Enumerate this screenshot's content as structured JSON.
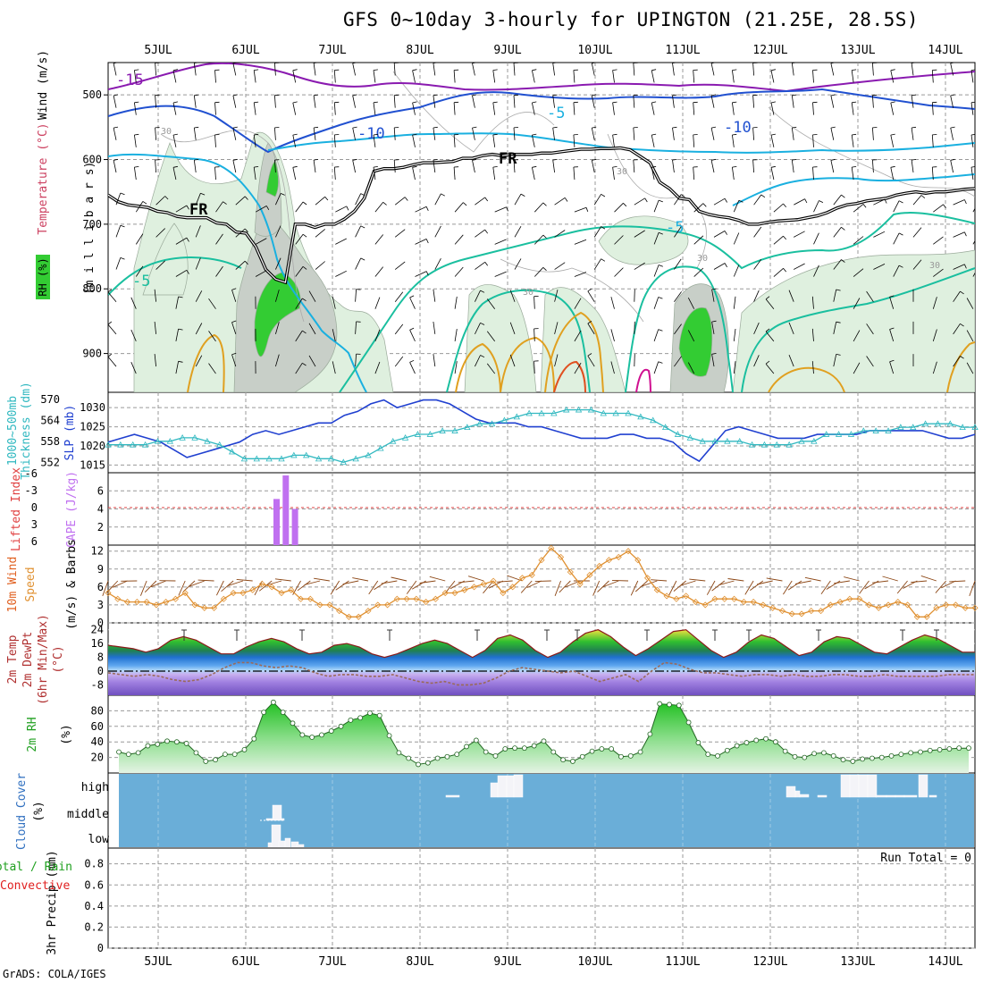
{
  "title": "GFS 0~10day 3-hourly for UPINGTON (21.25E, 28.5S)",
  "footer": "GrADS: COLA/IGES",
  "colors": {
    "rh_green": "#33cc33",
    "rh_light": "#dff0df",
    "rh_grey": "#c8cfc8",
    "temp_purple": "#8a1ab0",
    "temp_blue": "#2050d0",
    "temp_cyan": "#1ab0e0",
    "temp_teal": "#1abf9f",
    "temp_orange": "#e0a020",
    "freezing": "#000000",
    "slp": "#2040d0",
    "thickness": "#30b8c0",
    "cape": "#c070f0",
    "li_line": "#e04040",
    "wind10m": "#e09030",
    "barbs": "#8b4513",
    "dewpt": "#9a6a5a",
    "cloud_bg": "#6aaed8"
  },
  "chart_data": [
    {
      "type": "heatmap",
      "name": "vertical-cross-section",
      "ylabel": "(m i l l i b a r s)",
      "left_labels": [
        "RH (%)",
        "Temperature (°C)",
        "Wind (m/s)"
      ],
      "x_dates": [
        "5JUL",
        "6JUL",
        "7JUL",
        "8JUL",
        "9JUL",
        "10JUL",
        "11JUL",
        "12JUL",
        "13JUL",
        "14JUL"
      ],
      "yticks": [
        500,
        600,
        700,
        800,
        900
      ],
      "ylim": [
        450,
        960
      ],
      "contour_labels": [
        "-15",
        "-10",
        "-10",
        "-5",
        "-5",
        "-5",
        "FR",
        "FR",
        "30",
        "30",
        "30",
        "30",
        "30"
      ],
      "freezing_level_mb": [
        655,
        665,
        670,
        672,
        674,
        680,
        682,
        688,
        690,
        690,
        690,
        698,
        700,
        712,
        714,
        735,
        770,
        785,
        790,
        700,
        700,
        705,
        700,
        700,
        692,
        680,
        660,
        618,
        614,
        614,
        612,
        608,
        605,
        605,
        604,
        603,
        598,
        598,
        594,
        592,
        594,
        592,
        592,
        592,
        590,
        590,
        588,
        586,
        584,
        584,
        583,
        583,
        582,
        585,
        595,
        605,
        635,
        645,
        660,
        662,
        680,
        685,
        688,
        690,
        694,
        700,
        700,
        697,
        695,
        694,
        693,
        690,
        687,
        682,
        675,
        670,
        668,
        664,
        662,
        660,
        655,
        652,
        650,
        652,
        650,
        650,
        648,
        646,
        645
      ]
    },
    {
      "type": "line",
      "name": "slp-thickness",
      "left_labels": [
        "1000~500mb",
        "Thickness (dm)",
        "SLP (mb)"
      ],
      "y_thickness_ticks": [
        552,
        558,
        564,
        570
      ],
      "y_slp_ticks": [
        1015,
        1020,
        1025,
        1030
      ],
      "ylim_slp": [
        1013,
        1034
      ],
      "series": [
        {
          "name": "SLP (mb)",
          "values": [
            1021,
            1022,
            1023,
            1022,
            1021,
            1019,
            1017,
            1018,
            1019,
            1020,
            1021,
            1023,
            1024,
            1023,
            1024,
            1025,
            1026,
            1026,
            1028,
            1029,
            1031,
            1032,
            1030,
            1031,
            1032,
            1032,
            1031,
            1029,
            1027,
            1026,
            1026,
            1026,
            1025,
            1025,
            1024,
            1023,
            1022,
            1022,
            1022,
            1023,
            1023,
            1022,
            1022,
            1021,
            1018,
            1016,
            1020,
            1024,
            1025,
            1024,
            1023,
            1022,
            1022,
            1022,
            1023,
            1023,
            1023,
            1023,
            1024,
            1024,
            1024,
            1024,
            1024,
            1023,
            1022,
            1022,
            1023
          ]
        },
        {
          "name": "Thickness (dm)",
          "values": [
            557,
            557,
            557,
            557,
            558,
            558,
            559,
            559,
            558,
            557,
            555,
            553,
            553,
            553,
            553,
            554,
            554,
            553,
            553,
            552,
            553,
            554,
            556,
            558,
            559,
            560,
            560,
            561,
            561,
            562,
            563,
            563,
            564,
            565,
            566,
            566,
            566,
            567,
            567,
            567,
            566,
            566,
            566,
            565,
            564,
            562,
            560,
            559,
            558,
            558,
            558,
            558,
            557,
            557,
            557,
            557,
            558,
            558,
            560,
            560,
            560,
            561,
            561,
            561,
            562,
            562,
            563,
            563,
            563,
            562,
            562
          ]
        }
      ]
    },
    {
      "type": "bar",
      "name": "cape-li",
      "left_labels": [
        "Lifted Index",
        "CAPE (J/kg)"
      ],
      "y_li_ticks": [
        "-6",
        "-3",
        "0",
        "3",
        "6"
      ],
      "y_cape_ticks": [
        2,
        4,
        6
      ],
      "ylim_cape": [
        0,
        8
      ],
      "x_index": [
        14,
        15,
        16
      ],
      "values": [
        5.1,
        7.7,
        4.0
      ],
      "li_zero": 0
    },
    {
      "type": "line",
      "name": "wind10m",
      "left_labels": [
        "10m Wind",
        "Speed",
        "(m/s) & Barbs"
      ],
      "yticks": [
        0,
        3,
        6,
        9,
        12
      ],
      "ylim": [
        0,
        13
      ],
      "series": [
        {
          "name": "Speed",
          "values": [
            5,
            4,
            3.5,
            3.5,
            3.5,
            3,
            3.5,
            4,
            5,
            3,
            2.5,
            2.5,
            4,
            5,
            5,
            5.5,
            6.5,
            6,
            5,
            5.5,
            4,
            4,
            3,
            3,
            2,
            1,
            1,
            2,
            3,
            3,
            4,
            4,
            4,
            3.5,
            4,
            5,
            5,
            5.5,
            6,
            6.5,
            7,
            5,
            6,
            7.5,
            8,
            10.5,
            12.5,
            11,
            8.5,
            6.5,
            8,
            9.5,
            10.5,
            11,
            12,
            10.5,
            7.5,
            5.5,
            4.5,
            4,
            4.5,
            3.5,
            3,
            4,
            4,
            4,
            3.5,
            3.5,
            3,
            2.5,
            2,
            1.5,
            1.5,
            2,
            2,
            3,
            3.5,
            4,
            4,
            3,
            2.5,
            3,
            3.5,
            3,
            1,
            1,
            2.5,
            3,
            3,
            2.5,
            2.5
          ]
        }
      ]
    },
    {
      "type": "area",
      "name": "temp-dewpt",
      "left_labels": [
        "2m Temp",
        "2m DewPt",
        "(6hr Min/Max)",
        "(°C)"
      ],
      "yticks": [
        -8,
        0,
        8,
        16,
        24
      ],
      "ylim": [
        -14,
        28
      ],
      "series": [
        {
          "name": "2m Temp",
          "values": [
            15,
            14,
            13,
            11,
            13,
            18,
            20,
            18,
            14,
            10,
            10,
            14,
            17,
            19,
            17,
            13,
            10,
            11,
            15,
            16,
            14,
            10,
            8,
            10,
            13,
            16,
            18,
            16,
            12,
            8,
            12,
            19,
            21,
            18,
            12,
            8,
            11,
            17,
            22,
            24,
            20,
            14,
            9,
            13,
            18,
            23,
            24,
            18,
            12,
            8,
            11,
            17,
            21,
            19,
            14,
            9,
            11,
            17,
            20,
            19,
            15,
            11,
            10,
            14,
            18,
            21,
            19,
            15,
            11,
            11
          ]
        },
        {
          "name": "2m DewPt",
          "values": [
            -1,
            -2,
            -3,
            -2,
            -3,
            -5,
            -6,
            -5,
            -2,
            2,
            5,
            5,
            3,
            2,
            3,
            2,
            -1,
            -3,
            -2,
            -2,
            -3,
            -3,
            -2,
            -4,
            -6,
            -7,
            -6,
            -8,
            -8,
            -7,
            -4,
            0,
            2,
            1,
            0,
            -1,
            0,
            -3,
            -6,
            -4,
            -2,
            -6,
            0,
            5,
            4,
            1,
            -1,
            -1,
            -2,
            -3,
            -2,
            -2,
            -3,
            -2,
            -3,
            -3,
            -2,
            -2,
            -3,
            -3,
            -2,
            -3,
            -3,
            -3,
            -3,
            -2,
            -2,
            -2
          ]
        }
      ]
    },
    {
      "type": "area",
      "name": "rh2m",
      "left_labels": [
        "2m RH",
        "(%)"
      ],
      "yticks": [
        20,
        40,
        60,
        80
      ],
      "ylim": [
        0,
        100
      ],
      "series": [
        {
          "name": "2m RH",
          "values": [
            27,
            24,
            26,
            35,
            37,
            41,
            40,
            38,
            26,
            15,
            17,
            24,
            24,
            30,
            44,
            78,
            91,
            78,
            64,
            49,
            46,
            49,
            54,
            60,
            68,
            71,
            77,
            74,
            48,
            26,
            19,
            11,
            13,
            19,
            21,
            24,
            34,
            42,
            27,
            22,
            31,
            32,
            32,
            35,
            41,
            27,
            17,
            15,
            21,
            28,
            31,
            31,
            21,
            22,
            27,
            50,
            89,
            88,
            87,
            65,
            39,
            24,
            22,
            29,
            35,
            39,
            42,
            44,
            40,
            28,
            21,
            20,
            25,
            26,
            22,
            17,
            15,
            18,
            19,
            20,
            22,
            24,
            26,
            27,
            29,
            30,
            31,
            32,
            32
          ]
        }
      ]
    },
    {
      "type": "bar",
      "name": "cloud-cover",
      "left_labels": [
        "Cloud Cover",
        "(%)"
      ],
      "y_levels": [
        "high",
        "middle",
        "low"
      ]
    },
    {
      "type": "bar",
      "name": "precip",
      "left_labels": [
        "Total / Rain",
        "Convective",
        "3hr Precip (mm)"
      ],
      "yticks": [
        "0",
        "0.2",
        "0.4",
        "0.6",
        "0.8"
      ],
      "ylim": [
        0,
        0.95
      ],
      "run_total_label": "Run Total = 0",
      "values": []
    }
  ]
}
